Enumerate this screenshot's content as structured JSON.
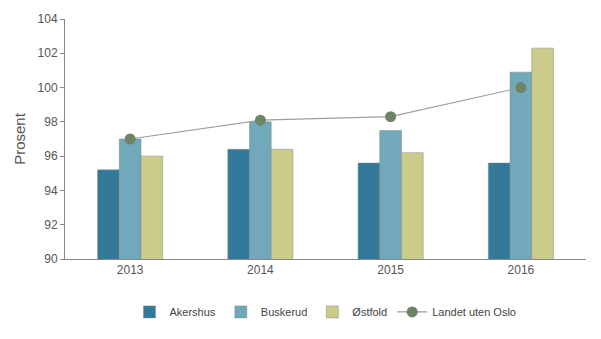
{
  "chart_data": {
    "type": "bar",
    "y_label": "Prosent",
    "categories": [
      "2013",
      "2014",
      "2015",
      "2016"
    ],
    "series": [
      {
        "name": "Akershus",
        "type": "bar",
        "color": "#35799a",
        "values": [
          95.2,
          96.4,
          95.6,
          95.6
        ]
      },
      {
        "name": "Buskerud",
        "type": "bar",
        "color": "#72a8bc",
        "values": [
          97.0,
          98.0,
          97.5,
          100.9
        ]
      },
      {
        "name": "Østfold",
        "type": "bar",
        "color": "#cbcc8c",
        "values": [
          96.0,
          96.4,
          96.2,
          102.3
        ]
      },
      {
        "name": "Landet uten Oslo",
        "type": "line",
        "marker": "circle",
        "color": "#6e8466",
        "values": [
          97.0,
          98.1,
          98.3,
          100.0
        ]
      }
    ],
    "ylim": [
      90,
      104
    ],
    "yticks": [
      90,
      92,
      94,
      96,
      98,
      100,
      102,
      104
    ],
    "grid": false,
    "legend": "bottom"
  }
}
